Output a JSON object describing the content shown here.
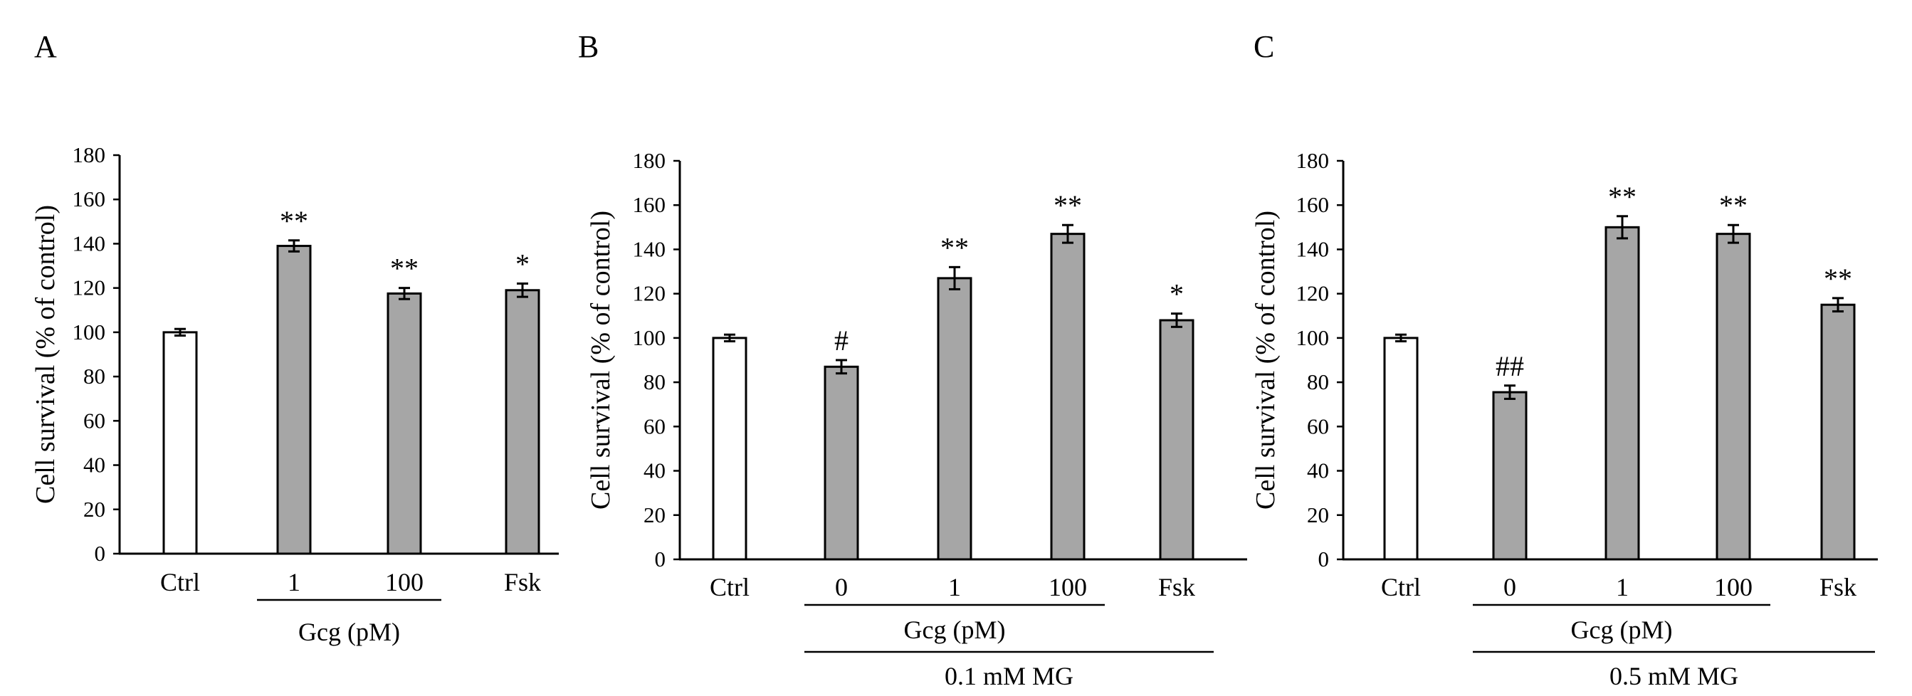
{
  "colors": {
    "control_bar": "#ffffff",
    "treated_bar": "#a6a6a6",
    "stroke": "#000000"
  },
  "chart_data": [
    {
      "type": "bar",
      "panel": "A",
      "ylabel": "Cell survival (% of control)",
      "ylim": [
        0,
        180
      ],
      "yticks": [
        0,
        20,
        40,
        60,
        80,
        100,
        120,
        140,
        160,
        180
      ],
      "categories": [
        "Ctrl",
        "1",
        "100",
        "Fsk"
      ],
      "values": [
        100,
        139,
        117.5,
        119
      ],
      "errors": [
        1.5,
        2.5,
        2.5,
        3
      ],
      "bar_fill": [
        "control",
        "treated",
        "treated",
        "treated"
      ],
      "significance": [
        "",
        "**",
        "**",
        "*"
      ],
      "groups": [
        {
          "label": "Gcg (pM)",
          "from": 1,
          "to": 2
        }
      ],
      "grid": false
    },
    {
      "type": "bar",
      "panel": "B",
      "ylabel": "Cell survival (% of control)",
      "ylim": [
        0,
        180
      ],
      "yticks": [
        0,
        20,
        40,
        60,
        80,
        100,
        120,
        140,
        160,
        180
      ],
      "categories": [
        "Ctrl",
        "0",
        "1",
        "100",
        "Fsk"
      ],
      "values": [
        100,
        87,
        127,
        147,
        108
      ],
      "errors": [
        1.5,
        3,
        5,
        4,
        3
      ],
      "bar_fill": [
        "control",
        "treated",
        "treated",
        "treated",
        "treated"
      ],
      "significance": [
        "",
        "#",
        "**",
        "**",
        "*"
      ],
      "groups": [
        {
          "label": "Gcg (pM)",
          "from": 1,
          "to": 3
        },
        {
          "label": "0.1 mM MG",
          "from": 1,
          "to": 4
        }
      ],
      "grid": false
    },
    {
      "type": "bar",
      "panel": "C",
      "ylabel": "Cell survival (% of control)",
      "ylim": [
        0,
        180
      ],
      "yticks": [
        0,
        20,
        40,
        60,
        80,
        100,
        120,
        140,
        160,
        180
      ],
      "categories": [
        "Ctrl",
        "0",
        "1",
        "100",
        "Fsk"
      ],
      "values": [
        100,
        75.5,
        150,
        147,
        115
      ],
      "errors": [
        1.5,
        3,
        5,
        4,
        3
      ],
      "bar_fill": [
        "control",
        "treated",
        "treated",
        "treated",
        "treated"
      ],
      "significance": [
        "",
        "##",
        "**",
        "**",
        "**"
      ],
      "groups": [
        {
          "label": "Gcg (pM)",
          "from": 1,
          "to": 3
        },
        {
          "label": "0.5 mM MG",
          "from": 1,
          "to": 4
        }
      ],
      "grid": false
    }
  ]
}
